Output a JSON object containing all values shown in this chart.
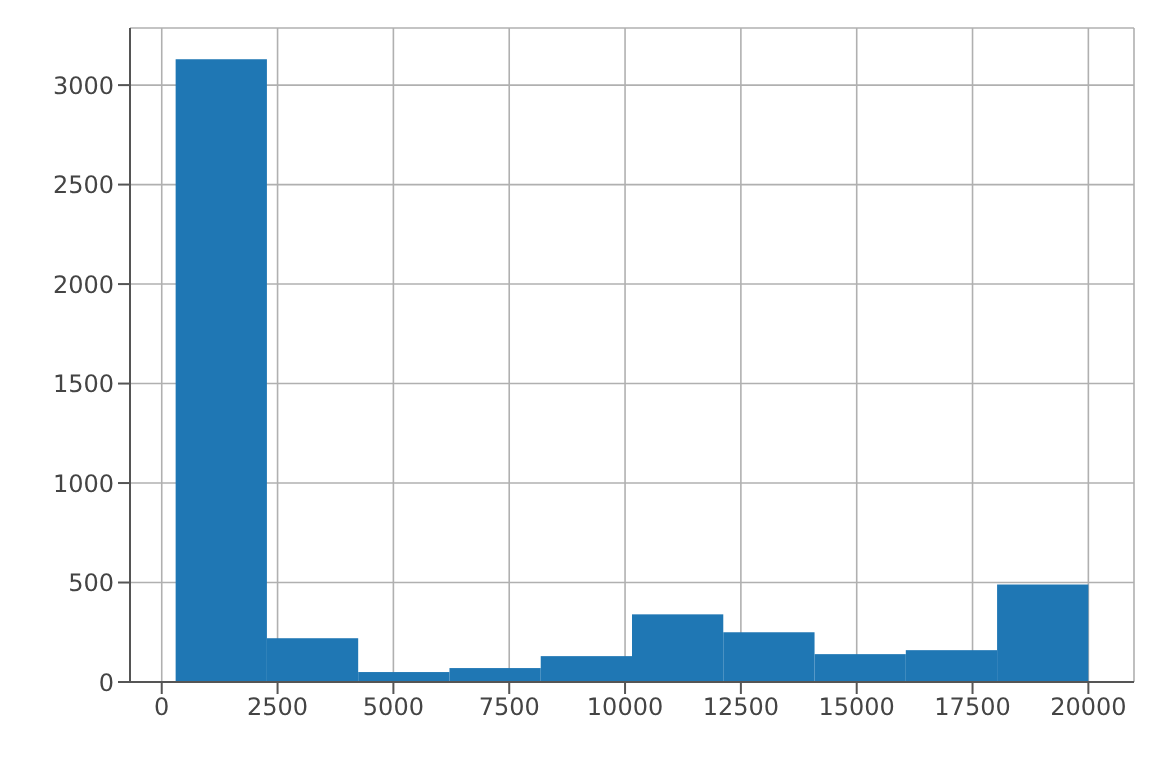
{
  "chart_data": {
    "type": "histogram",
    "bins": [
      300,
      2270,
      4240,
      6210,
      8180,
      10150,
      12120,
      14090,
      16060,
      18030,
      20000
    ],
    "values": [
      3130,
      220,
      50,
      70,
      130,
      340,
      250,
      140,
      160,
      490
    ],
    "color": "#1f77b4",
    "xlim": [
      -685,
      20985
    ],
    "xticks": [
      0,
      2500,
      5000,
      7500,
      10000,
      12500,
      15000,
      17500,
      20000
    ],
    "ylim": [
      0,
      3287
    ],
    "yticks": [
      0,
      500,
      1000,
      1500,
      2000,
      2500,
      3000
    ],
    "grid": true
  }
}
